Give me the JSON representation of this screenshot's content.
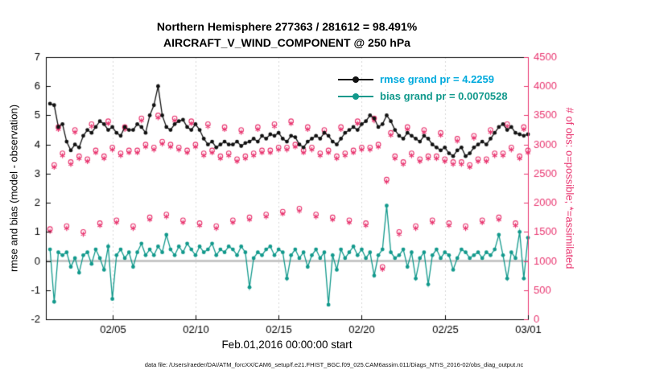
{
  "figure": {
    "title_line1": "Northern Hemisphere 277363 / 281612 = 98.491%",
    "title_line2": "AIRCRAFT_V_WIND_COMPONENT @ 250 hPa",
    "xlabel": "Feb.01,2016 00:00:00 start",
    "ylabel_left": "rmse and bias (model - observation)",
    "ylabel_right": "# of obs: o=possible; *=assimilated",
    "caption": "data file: /Users/raeder/DAI/ATM_forcXX/CAM6_setup/f.e21.FHIST_BGC.f09_025.CAM6assim.011/Diags_NTrS_2016-02/obs_diag_output.nc"
  },
  "chart_data": {
    "type": "line",
    "title": "Northern Hemisphere 277363 / 281612 = 98.491%",
    "subtitle": "AIRCRAFT_V_WIND_COMPONENT @ 250 hPa",
    "xlabel": "Feb.01,2016 00:00:00 start",
    "ylabel_left": "rmse and bias (model - observation)",
    "ylabel_right": "# of obs: o=possible; *=assimilated",
    "xlim": [
      0,
      29
    ],
    "ylim_left": [
      -2,
      7
    ],
    "ylim_right": [
      0,
      4500
    ],
    "grid": "vertical-dotted",
    "legend_position": "top-center-inside",
    "yticks_left": [
      -2,
      -1,
      0,
      1,
      2,
      3,
      4,
      5,
      6,
      7
    ],
    "yticks_right": [
      0,
      500,
      1000,
      1500,
      2000,
      2500,
      3000,
      3500,
      4000,
      4500
    ],
    "xticks": [
      {
        "t": 4,
        "label": "02/05"
      },
      {
        "t": 9,
        "label": "02/10"
      },
      {
        "t": 14,
        "label": "02/15"
      },
      {
        "t": 19,
        "label": "02/20"
      },
      {
        "t": 24,
        "label": "02/25"
      },
      {
        "t": 29,
        "label": "03/01"
      }
    ],
    "x_start": 0.25,
    "x_step": 0.25,
    "zero_line_color": "#c8c8c8",
    "accent_pink": "#e8336e",
    "rmse_grand_pr": 4.2259,
    "bias_grand_pr": 0.0070528,
    "legend": [
      {
        "label": "rmse grand pr = 4.2259",
        "text_color": "#00aadd",
        "line_color": "#111111"
      },
      {
        "label": "bias grand pr = 0.0070528",
        "text_color": "#12998c",
        "line_color": "#12998c"
      }
    ],
    "series": [
      {
        "name": "rmse",
        "axis": "left",
        "color": "#111111",
        "marker": "dot",
        "values": [
          5.4,
          5.35,
          4.6,
          4.7,
          4.1,
          3.8,
          4.0,
          3.9,
          4.3,
          4.5,
          4.4,
          4.6,
          4.8,
          4.7,
          4.5,
          4.6,
          4.4,
          4.3,
          4.6,
          4.5,
          4.5,
          4.7,
          4.6,
          4.4,
          5.0,
          5.35,
          6.0,
          5.0,
          4.6,
          4.5,
          4.7,
          4.8,
          4.85,
          4.6,
          4.5,
          4.7,
          4.5,
          4.2,
          4.0,
          4.1,
          3.9,
          4.0,
          4.1,
          4.0,
          4.0,
          4.1,
          3.95,
          4.05,
          4.1,
          4.2,
          4.1,
          4.3,
          4.2,
          4.35,
          4.3,
          4.4,
          4.2,
          4.1,
          4.3,
          4.25,
          4.0,
          3.9,
          4.1,
          4.2,
          4.3,
          4.2,
          4.4,
          4.3,
          4.1,
          4.0,
          4.2,
          4.4,
          4.5,
          4.6,
          4.5,
          4.7,
          4.8,
          5.0,
          4.9,
          4.6,
          4.7,
          5.0,
          4.8,
          4.5,
          4.3,
          4.2,
          4.4,
          4.3,
          4.2,
          4.1,
          4.3,
          4.2,
          4.0,
          3.9,
          3.8,
          3.9,
          3.7,
          3.6,
          3.8,
          3.9,
          3.6,
          3.7,
          3.9,
          4.0,
          4.1,
          4.0,
          4.2,
          4.4,
          4.6,
          4.7,
          4.5,
          4.6,
          4.4,
          4.35,
          4.3,
          4.35
        ]
      },
      {
        "name": "bias",
        "axis": "left",
        "color": "#12998c",
        "marker": "dot",
        "values": [
          0.4,
          -1.4,
          0.3,
          0.2,
          0.3,
          -0.2,
          0.1,
          -0.4,
          0.2,
          0.3,
          -0.1,
          0.4,
          0.1,
          -0.3,
          0.5,
          -1.3,
          0.2,
          0.4,
          0.1,
          0.3,
          -0.2,
          0.3,
          0.6,
          0.2,
          0.4,
          0.2,
          0.5,
          0.3,
          0.9,
          0.4,
          0.2,
          0.5,
          0.3,
          0.6,
          0.4,
          0.2,
          0.5,
          0.3,
          0.4,
          0.6,
          0.2,
          0.4,
          0.3,
          0.5,
          0.4,
          0.2,
          0.5,
          0.3,
          -0.9,
          0.1,
          0.3,
          0.2,
          0.4,
          0.5,
          0.2,
          0.4,
          0.3,
          -0.6,
          0.2,
          0.4,
          0.1,
          0.3,
          -0.2,
          0.2,
          0.4,
          0.1,
          0.3,
          -1.5,
          0.2,
          -0.3,
          0.4,
          0.1,
          0.3,
          0.5,
          0.2,
          0.4,
          0.1,
          0.3,
          -0.5,
          0.2,
          0.4,
          1.9,
          0.3,
          0.1,
          0.2,
          0.4,
          -0.2,
          0.3,
          -0.6,
          0.1,
          0.3,
          -0.8,
          0.2,
          0.4,
          0.1,
          0.3,
          0.2,
          -0.3,
          0.1,
          0.4,
          0.3,
          0.1,
          0.2,
          0.3,
          0.1,
          0.3,
          0.2,
          0.4,
          0.9,
          0.2,
          -0.6,
          0.3,
          0.1,
          1.0,
          -0.6,
          0.8
        ]
      },
      {
        "name": "possible",
        "axis": "right",
        "color": "#e8336e",
        "marker": "o",
        "values": [
          1550,
          2650,
          3300,
          2850,
          1600,
          2700,
          3250,
          2800,
          1500,
          2750,
          3350,
          2900,
          1650,
          2800,
          3400,
          2950,
          1700,
          2850,
          3300,
          2900,
          1600,
          2900,
          3450,
          3000,
          1750,
          2950,
          3500,
          3050,
          1800,
          3000,
          3450,
          2950,
          1700,
          2900,
          3400,
          3000,
          1650,
          2850,
          3350,
          2900,
          1600,
          2800,
          3300,
          2850,
          1700,
          2750,
          3250,
          2800,
          1750,
          2850,
          3300,
          2900,
          1800,
          2900,
          3350,
          2950,
          1850,
          2950,
          3400,
          3000,
          1900,
          2900,
          3300,
          2950,
          1800,
          2850,
          3250,
          2900,
          1750,
          2800,
          3300,
          2850,
          1700,
          2900,
          3400,
          2950,
          1650,
          2950,
          3450,
          3000,
          900,
          2400,
          3200,
          2800,
          1500,
          2700,
          3300,
          2850,
          1600,
          2750,
          3250,
          2800,
          1700,
          2800,
          3200,
          2750,
          1650,
          2700,
          3100,
          2700,
          1600,
          2650,
          3150,
          2750,
          1700,
          2750,
          3250,
          2850,
          1750,
          2850,
          3350,
          2950,
          1650,
          2800,
          3300,
          2900
        ]
      },
      {
        "name": "assimilated",
        "axis": "right",
        "color": "#e8336e",
        "marker": "*",
        "values": [
          1510,
          2610,
          3260,
          2810,
          1560,
          2660,
          3210,
          2760,
          1460,
          2710,
          3310,
          2860,
          1610,
          2760,
          3360,
          2910,
          1660,
          2810,
          3260,
          2860,
          1560,
          2860,
          3410,
          2960,
          1710,
          2910,
          3460,
          3010,
          1760,
          2960,
          3410,
          2910,
          1660,
          2860,
          3360,
          2960,
          1610,
          2810,
          3310,
          2860,
          1560,
          2760,
          3260,
          2810,
          1660,
          2710,
          3210,
          2760,
          1710,
          2810,
          3260,
          2860,
          1760,
          2860,
          3310,
          2910,
          1810,
          2910,
          3360,
          2960,
          1860,
          2860,
          3260,
          2910,
          1760,
          2810,
          3210,
          2860,
          1710,
          2760,
          3260,
          2810,
          1660,
          2860,
          3360,
          2910,
          1610,
          2910,
          3410,
          2960,
          860,
          2360,
          3160,
          2760,
          1460,
          2660,
          3260,
          2810,
          1560,
          2710,
          3210,
          2760,
          1660,
          2760,
          3160,
          2710,
          1610,
          2660,
          3060,
          2660,
          1560,
          2610,
          3110,
          2710,
          1660,
          2710,
          3210,
          2810,
          1710,
          2810,
          3310,
          2910,
          1610,
          2760,
          3260,
          2860
        ]
      }
    ]
  }
}
